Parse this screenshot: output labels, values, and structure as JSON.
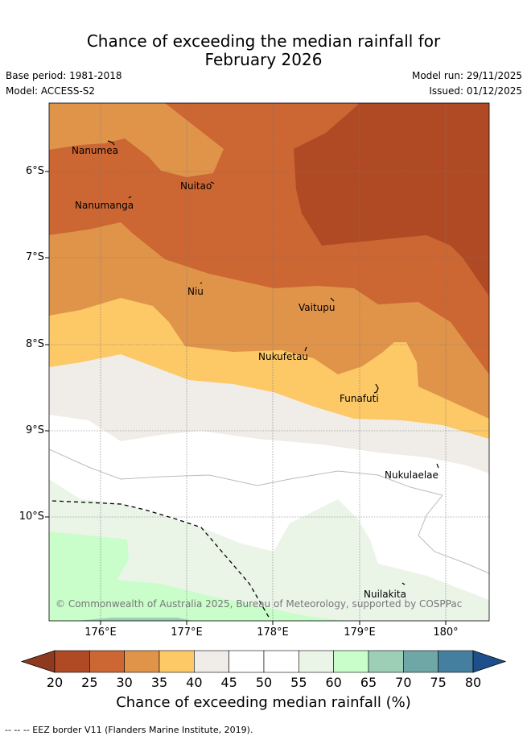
{
  "title_line1": "Chance of exceeding the median rainfall for",
  "title_line2": "February 2026",
  "base_period": "Base period: 1981-2018",
  "model": "Model: ACCESS-S2",
  "model_run": "Model run: 29/11/2025",
  "issued": "Issued: 01/12/2025",
  "lat_labels": [
    "6°S",
    "7°S",
    "8°S",
    "9°S",
    "10°S"
  ],
  "lon_labels": [
    "176°E",
    "177°E",
    "178°E",
    "179°E",
    "180°"
  ],
  "islands": [
    "Nanumea",
    "Nuitao",
    "Nanumanga",
    "Niu",
    "Vaitupu",
    "Nukufetau",
    "Funafuti",
    "Nukulaelae",
    "Nuilakita"
  ],
  "copyright": "© Commonwealth of Australia 2025, Bureau of Meteorology, supported by COSPPac",
  "colorbar": {
    "ticks": [
      "20",
      "25",
      "30",
      "35",
      "40",
      "45",
      "50",
      "55",
      "60",
      "65",
      "70",
      "75",
      "80"
    ],
    "colors": [
      "#8f3a1f",
      "#b04a25",
      "#cc6633",
      "#e0944a",
      "#fdc866",
      "#f0ede8",
      "#ffffff",
      "#ffffff",
      "#eaf5e8",
      "#c9fdc9",
      "#9ccfb6",
      "#6fa6a6",
      "#457f9f",
      "#1e4f8c"
    ],
    "label": "Chance of exceeding median rainfall (%)"
  },
  "footer": "--  --  -- EEZ border V11 (Flanders Marine Institute, 2019)."
}
